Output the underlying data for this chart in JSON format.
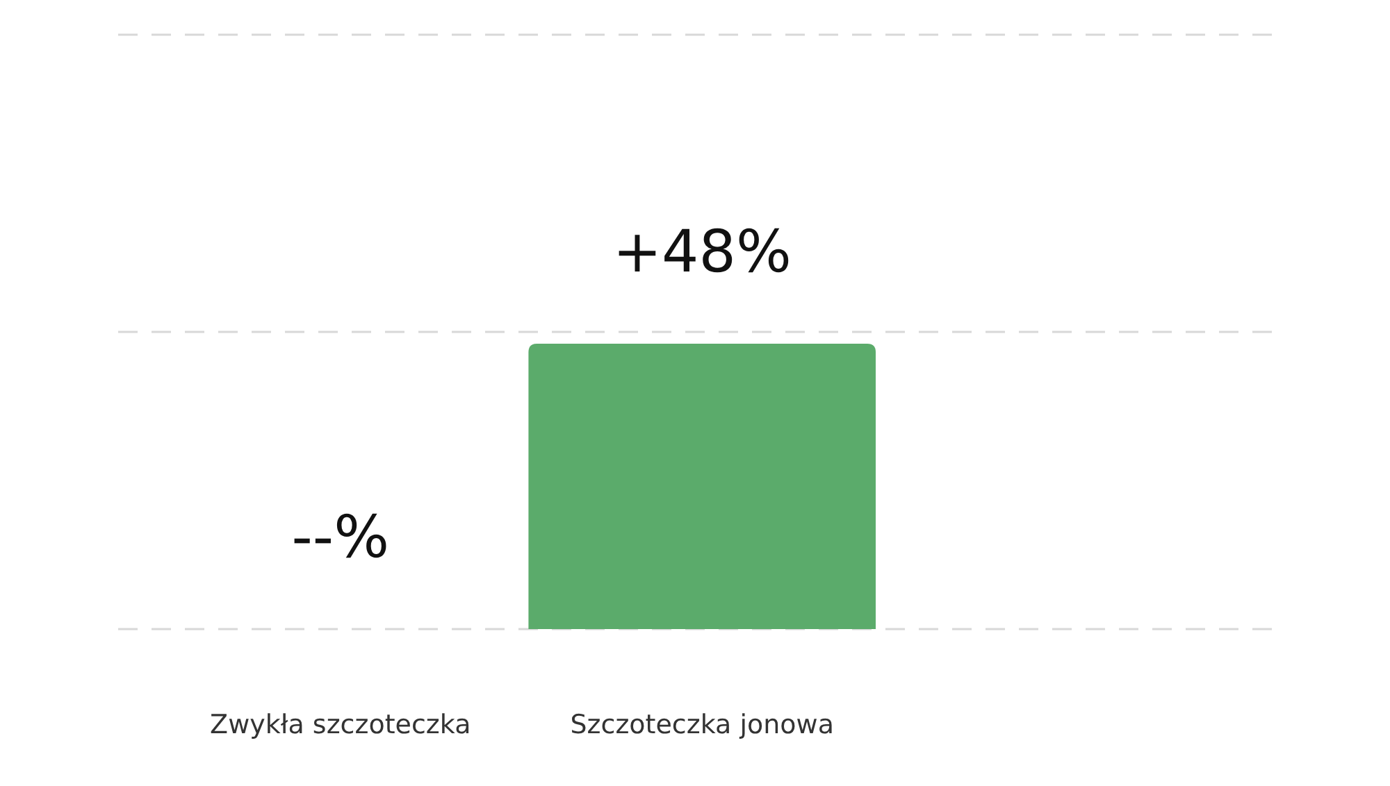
{
  "chart_data": {
    "type": "bar",
    "categories": [
      "Zwykła szczoteczka",
      "Szczoteczka jonowa"
    ],
    "values": [
      null,
      48
    ],
    "colors": [
      null,
      "#5bab6b"
    ],
    "value_labels": [
      "--%",
      "+48%"
    ],
    "ylim": [
      0,
      100
    ],
    "yticks": [
      0,
      50,
      100
    ],
    "tick_labels": "x",
    "grid": "y"
  }
}
